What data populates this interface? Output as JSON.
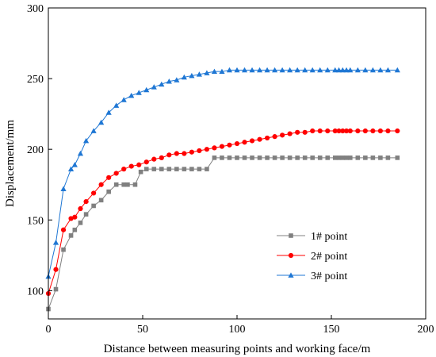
{
  "chart_data": {
    "type": "line",
    "xlabel": "Distance between measuring points and working face/m",
    "ylabel": "Displacement/mm",
    "xlim": [
      0,
      200
    ],
    "ylim": [
      80,
      300
    ],
    "xticks": [
      0,
      50,
      100,
      150,
      200
    ],
    "yticks": [
      100,
      150,
      200,
      250,
      300
    ],
    "grid": false,
    "legend_position": "lower-right",
    "series": [
      {
        "name": "1# point",
        "color": "#808080",
        "marker": "square",
        "x": [
          0,
          4,
          8,
          12,
          14,
          17,
          20,
          24,
          28,
          32,
          36,
          40,
          42,
          46,
          49,
          52,
          56,
          60,
          64,
          68,
          72,
          76,
          80,
          84,
          88,
          92,
          96,
          100,
          104,
          108,
          112,
          116,
          120,
          124,
          128,
          132,
          136,
          140,
          144,
          148,
          152,
          154,
          156,
          158,
          160,
          164,
          168,
          172,
          176,
          180,
          185
        ],
        "y": [
          87,
          101,
          129,
          139,
          143,
          148,
          154,
          160,
          164,
          170,
          175,
          175,
          175,
          175,
          184,
          186,
          186,
          186,
          186,
          186,
          186,
          186,
          186,
          186,
          194,
          194,
          194,
          194,
          194,
          194,
          194,
          194,
          194,
          194,
          194,
          194,
          194,
          194,
          194,
          194,
          194,
          194,
          194,
          194,
          194,
          194,
          194,
          194,
          194,
          194,
          194
        ]
      },
      {
        "name": "2# point",
        "color": "#ff0000",
        "marker": "circle",
        "x": [
          0,
          4,
          8,
          12,
          14,
          17,
          20,
          24,
          28,
          32,
          36,
          40,
          44,
          48,
          52,
          56,
          60,
          64,
          68,
          72,
          76,
          80,
          84,
          88,
          92,
          96,
          100,
          104,
          108,
          112,
          116,
          120,
          124,
          128,
          132,
          136,
          140,
          144,
          148,
          152,
          154,
          156,
          158,
          160,
          164,
          168,
          172,
          176,
          180,
          185
        ],
        "y": [
          98,
          115,
          143,
          151,
          152,
          158,
          163,
          169,
          175,
          180,
          183,
          186,
          188,
          189,
          191,
          193,
          194,
          196,
          197,
          197,
          198,
          199,
          200,
          201,
          202,
          203,
          204,
          205,
          206,
          207,
          208,
          209,
          210,
          211,
          212,
          212,
          213,
          213,
          213,
          213,
          213,
          213,
          213,
          213,
          213,
          213,
          213,
          213,
          213,
          213
        ]
      },
      {
        "name": "3# point",
        "color": "#1f77d4",
        "marker": "triangle",
        "x": [
          0,
          4,
          8,
          12,
          14,
          17,
          20,
          24,
          28,
          32,
          36,
          40,
          44,
          48,
          52,
          56,
          60,
          64,
          68,
          72,
          76,
          80,
          84,
          88,
          92,
          96,
          100,
          104,
          108,
          112,
          116,
          120,
          124,
          128,
          132,
          136,
          140,
          144,
          148,
          152,
          154,
          156,
          158,
          160,
          164,
          168,
          172,
          176,
          180,
          185
        ],
        "y": [
          110,
          134,
          172,
          186,
          189,
          197,
          206,
          213,
          219,
          226,
          231,
          235,
          238,
          240,
          242,
          244,
          246,
          248,
          249,
          251,
          252,
          253,
          254,
          255,
          255,
          256,
          256,
          256,
          256,
          256,
          256,
          256,
          256,
          256,
          256,
          256,
          256,
          256,
          256,
          256,
          256,
          256,
          256,
          256,
          256,
          256,
          256,
          256,
          256,
          256
        ]
      }
    ]
  }
}
